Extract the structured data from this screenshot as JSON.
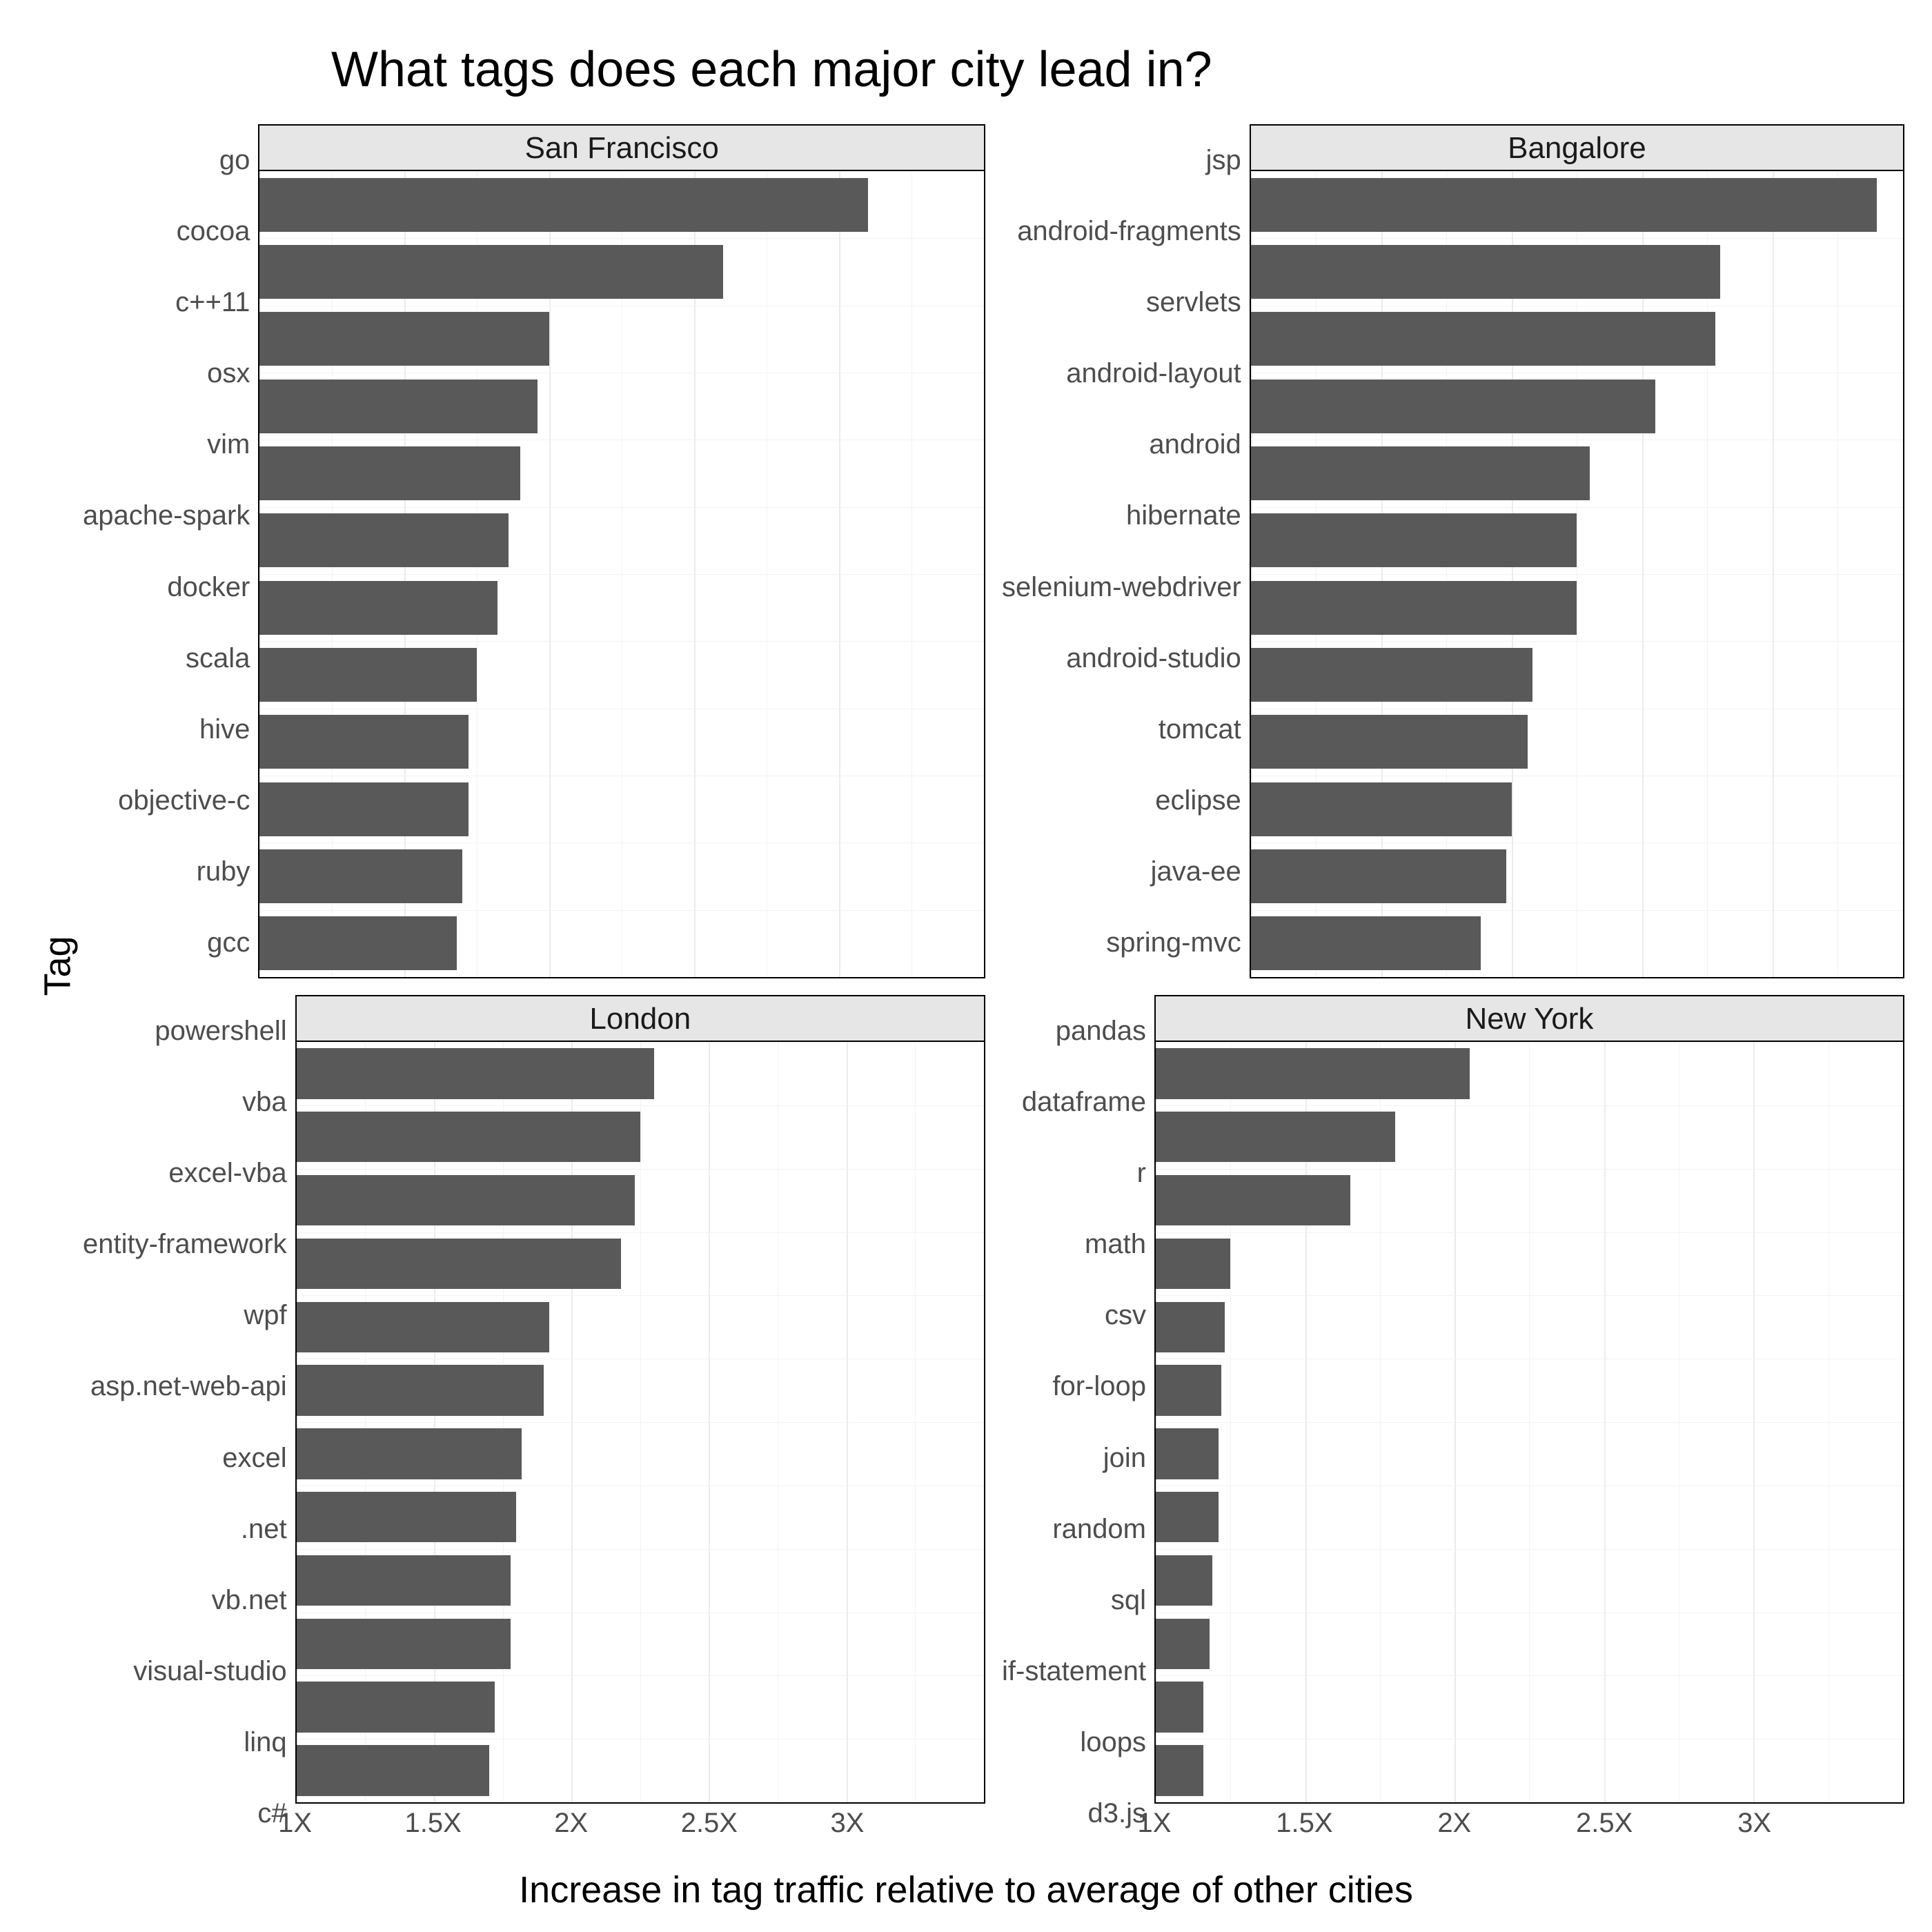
{
  "title": "What tags does each major city lead in?",
  "ylabel": "Tag",
  "xlabel": "Increase in tag traffic relative to average of other cities",
  "x_axis": {
    "min": 1.0,
    "max": 3.5,
    "major_ticks": [
      1.0,
      1.5,
      2.0,
      2.5,
      3.0
    ],
    "major_tick_labels": [
      "1X",
      "1.5X",
      "2X",
      "2.5X",
      "3X"
    ],
    "minor_ticks": [
      1.25,
      1.75,
      2.25,
      2.75,
      3.25
    ]
  },
  "style": {
    "background_color": "#ffffff",
    "panel_border_color": "#000000",
    "strip_background": "#e6e6e6",
    "major_grid_color": "#ebebeb",
    "minor_grid_color": "#f3f3f3",
    "bar_color": "#595959",
    "text_color": "#000000",
    "tick_text_color": "#4d4d4d",
    "title_fontsize": 72,
    "axis_label_fontsize": 54,
    "strip_fontsize": 44,
    "tick_fontsize": 40,
    "bar_rel_height": 0.8
  },
  "facets": [
    {
      "title": "San Francisco",
      "show_xticks": false,
      "bars": [
        {
          "label": "go",
          "value": 3.1
        },
        {
          "label": "cocoa",
          "value": 2.6
        },
        {
          "label": "c++11",
          "value": 2.0
        },
        {
          "label": "osx",
          "value": 1.96
        },
        {
          "label": "vim",
          "value": 1.9
        },
        {
          "label": "apache-spark",
          "value": 1.86
        },
        {
          "label": "docker",
          "value": 1.82
        },
        {
          "label": "scala",
          "value": 1.75
        },
        {
          "label": "hive",
          "value": 1.72
        },
        {
          "label": "objective-c",
          "value": 1.72
        },
        {
          "label": "ruby",
          "value": 1.7
        },
        {
          "label": "gcc",
          "value": 1.68
        }
      ]
    },
    {
      "title": "Bangalore",
      "show_xticks": false,
      "bars": [
        {
          "label": "jsp",
          "value": 3.4
        },
        {
          "label": "android-fragments",
          "value": 2.8
        },
        {
          "label": "servlets",
          "value": 2.78
        },
        {
          "label": "android-layout",
          "value": 2.55
        },
        {
          "label": "android",
          "value": 2.3
        },
        {
          "label": "hibernate",
          "value": 2.25
        },
        {
          "label": "selenium-webdriver",
          "value": 2.25
        },
        {
          "label": "android-studio",
          "value": 2.08
        },
        {
          "label": "tomcat",
          "value": 2.06
        },
        {
          "label": "eclipse",
          "value": 2.0
        },
        {
          "label": "java-ee",
          "value": 1.98
        },
        {
          "label": "spring-mvc",
          "value": 1.88
        }
      ]
    },
    {
      "title": "London",
      "show_xticks": true,
      "bars": [
        {
          "label": "powershell",
          "value": 2.3
        },
        {
          "label": "vba",
          "value": 2.25
        },
        {
          "label": "excel-vba",
          "value": 2.23
        },
        {
          "label": "entity-framework",
          "value": 2.18
        },
        {
          "label": "wpf",
          "value": 1.92
        },
        {
          "label": "asp.net-web-api",
          "value": 1.9
        },
        {
          "label": "excel",
          "value": 1.82
        },
        {
          "label": ".net",
          "value": 1.8
        },
        {
          "label": "vb.net",
          "value": 1.78
        },
        {
          "label": "visual-studio",
          "value": 1.78
        },
        {
          "label": "linq",
          "value": 1.72
        },
        {
          "label": "c#",
          "value": 1.7
        }
      ]
    },
    {
      "title": "New York",
      "show_xticks": true,
      "bars": [
        {
          "label": "pandas",
          "value": 2.05
        },
        {
          "label": "dataframe",
          "value": 1.8
        },
        {
          "label": "r",
          "value": 1.65
        },
        {
          "label": "math",
          "value": 1.25
        },
        {
          "label": "csv",
          "value": 1.23
        },
        {
          "label": "for-loop",
          "value": 1.22
        },
        {
          "label": "join",
          "value": 1.21
        },
        {
          "label": "random",
          "value": 1.21
        },
        {
          "label": "sql",
          "value": 1.19
        },
        {
          "label": "if-statement",
          "value": 1.18
        },
        {
          "label": "loops",
          "value": 1.16
        },
        {
          "label": "d3.js",
          "value": 1.16
        }
      ]
    }
  ]
}
